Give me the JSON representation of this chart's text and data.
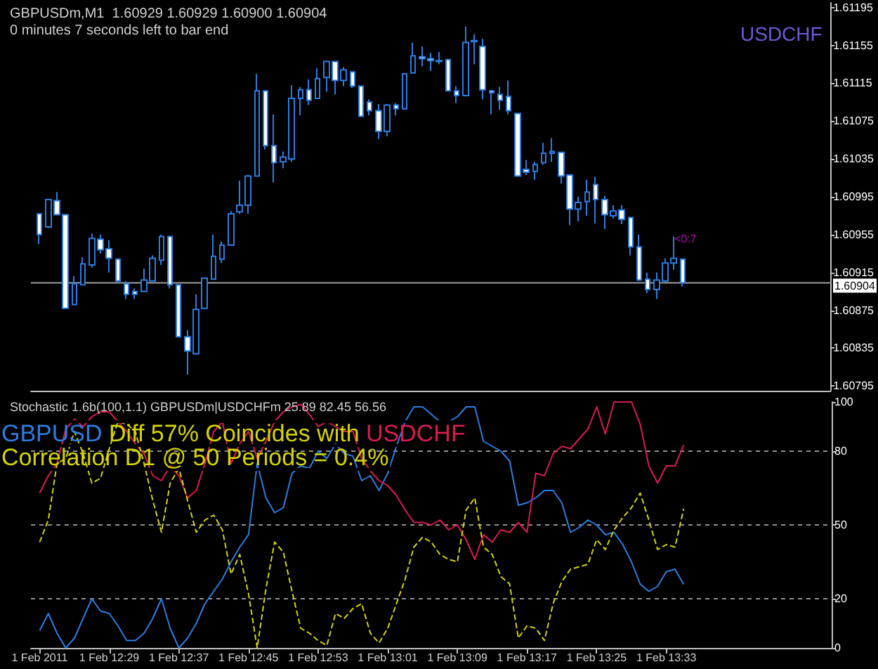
{
  "chart_data": [
    {
      "type": "candlestick",
      "title": "GBPUSDm,M1  1.60929 1.60929 1.60900 1.60904",
      "subtitle": "0 minutes 7 seconds left to bar end",
      "annotations": [
        "USDCHF",
        "<0:7"
      ],
      "x": [
        "2011-02-01T12:21",
        "2011-02-01T12:22",
        "2011-02-01T12:23",
        "2011-02-01T12:24",
        "2011-02-01T12:25",
        "2011-02-01T12:26",
        "2011-02-01T12:27",
        "2011-02-01T12:28",
        "2011-02-01T12:29",
        "2011-02-01T12:30",
        "2011-02-01T12:31",
        "2011-02-01T12:32",
        "2011-02-01T12:33",
        "2011-02-01T12:34",
        "2011-02-01T12:35",
        "2011-02-01T12:36",
        "2011-02-01T12:37",
        "2011-02-01T12:38",
        "2011-02-01T12:39",
        "2011-02-01T12:40",
        "2011-02-01T12:41",
        "2011-02-01T12:42",
        "2011-02-01T12:43",
        "2011-02-01T12:44",
        "2011-02-01T12:45",
        "2011-02-01T12:46",
        "2011-02-01T12:47",
        "2011-02-01T12:48",
        "2011-02-01T12:49",
        "2011-02-01T12:50",
        "2011-02-01T12:51",
        "2011-02-01T12:52",
        "2011-02-01T12:53",
        "2011-02-01T12:54",
        "2011-02-01T12:55",
        "2011-02-01T12:56",
        "2011-02-01T12:57",
        "2011-02-01T12:58",
        "2011-02-01T12:59",
        "2011-02-01T13:00",
        "2011-02-01T13:01",
        "2011-02-01T13:02",
        "2011-02-01T13:03",
        "2011-02-01T13:04",
        "2011-02-01T13:05",
        "2011-02-01T13:06",
        "2011-02-01T13:07",
        "2011-02-01T13:08",
        "2011-02-01T13:09",
        "2011-02-01T13:10",
        "2011-02-01T13:11",
        "2011-02-01T13:12",
        "2011-02-01T13:13",
        "2011-02-01T13:14",
        "2011-02-01T13:15",
        "2011-02-01T13:16",
        "2011-02-01T13:17",
        "2011-02-01T13:18",
        "2011-02-01T13:19",
        "2011-02-01T13:20",
        "2011-02-01T13:21",
        "2011-02-01T13:22",
        "2011-02-01T13:23",
        "2011-02-01T13:24",
        "2011-02-01T13:25",
        "2011-02-01T13:26",
        "2011-02-01T13:27",
        "2011-02-01T13:28",
        "2011-02-01T13:29",
        "2011-02-01T13:30",
        "2011-02-01T13:31",
        "2011-02-01T13:32",
        "2011-02-01T13:33",
        "2011-02-01T13:34",
        "2011-02-01T13:35"
      ],
      "xlim": [
        "2011-02-01T12:20",
        "2011-02-01T13:52"
      ],
      "series": [
        {
          "color": "#2a7de1",
          "ohlc": [
            [
              1.60977,
              1.60977,
              1.60945,
              1.60955
            ],
            [
              1.60963,
              1.60992,
              1.60962,
              1.60992
            ],
            [
              1.60991,
              1.61,
              1.60976,
              1.60976
            ],
            [
              1.60976,
              1.60976,
              1.60877,
              1.60877
            ],
            [
              1.60881,
              1.60911,
              1.60881,
              1.60903
            ],
            [
              1.60902,
              1.60931,
              1.60902,
              1.60924
            ],
            [
              1.60923,
              1.60956,
              1.6092,
              1.60951
            ],
            [
              1.6095,
              1.60955,
              1.60935,
              1.60939
            ],
            [
              1.6094,
              1.60949,
              1.60915,
              1.6093
            ],
            [
              1.60929,
              1.60929,
              1.60903,
              1.60906
            ],
            [
              1.60903,
              1.60906,
              1.60887,
              1.60892
            ],
            [
              1.60895,
              1.60898,
              1.60887,
              1.60892
            ],
            [
              1.60895,
              1.60919,
              1.60895,
              1.60907
            ],
            [
              1.60906,
              1.60933,
              1.60906,
              1.6093
            ],
            [
              1.60928,
              1.60955,
              1.60923,
              1.60953
            ],
            [
              1.60953,
              1.60953,
              1.60898,
              1.60902
            ],
            [
              1.60902,
              1.60902,
              1.60847,
              1.60847
            ],
            [
              1.60847,
              1.60854,
              1.60807,
              1.60832
            ],
            [
              1.60829,
              1.60892,
              1.60828,
              1.60876
            ],
            [
              1.60877,
              1.60909,
              1.60877,
              1.60909
            ],
            [
              1.60908,
              1.60955,
              1.60908,
              1.60932
            ],
            [
              1.60929,
              1.60948,
              1.60925,
              1.60944
            ],
            [
              1.60944,
              1.6098,
              1.60944,
              1.60977
            ],
            [
              1.60979,
              1.61012,
              1.60977,
              1.60986
            ],
            [
              1.60986,
              1.61018,
              1.60977,
              1.61017
            ],
            [
              1.61017,
              1.61125,
              1.61017,
              1.61107
            ],
            [
              1.61107,
              1.61107,
              1.61045,
              1.61049
            ],
            [
              1.61049,
              1.61082,
              1.6101,
              1.61031
            ],
            [
              1.61032,
              1.61043,
              1.61025,
              1.61037
            ],
            [
              1.61035,
              1.61113,
              1.61032,
              1.61099
            ],
            [
              1.61099,
              1.61111,
              1.61081,
              1.61108
            ],
            [
              1.61108,
              1.61119,
              1.61092,
              1.61097
            ],
            [
              1.61099,
              1.61131,
              1.61099,
              1.6112
            ],
            [
              1.61121,
              1.61139,
              1.61106,
              1.61138
            ],
            [
              1.61138,
              1.61138,
              1.61103,
              1.61118
            ],
            [
              1.61118,
              1.61132,
              1.61112,
              1.61129
            ],
            [
              1.61127,
              1.61127,
              1.6111,
              1.61112
            ],
            [
              1.61112,
              1.61112,
              1.6108,
              1.6108
            ],
            [
              1.61095,
              1.61098,
              1.61081,
              1.61086
            ],
            [
              1.61086,
              1.61093,
              1.61056,
              1.61064
            ],
            [
              1.61064,
              1.61093,
              1.61059,
              1.61092
            ],
            [
              1.61092,
              1.61094,
              1.61081,
              1.61088
            ],
            [
              1.61088,
              1.61126,
              1.61087,
              1.61125
            ],
            [
              1.61126,
              1.61158,
              1.61125,
              1.61144
            ],
            [
              1.61143,
              1.61154,
              1.61133,
              1.61141
            ],
            [
              1.61141,
              1.61147,
              1.61128,
              1.61139
            ],
            [
              1.61138,
              1.61148,
              1.61135,
              1.61139
            ],
            [
              1.6114,
              1.6114,
              1.61107,
              1.61107
            ],
            [
              1.61107,
              1.61112,
              1.61094,
              1.61102
            ],
            [
              1.61102,
              1.61175,
              1.61101,
              1.61158
            ],
            [
              1.61159,
              1.61167,
              1.61135,
              1.6116
            ],
            [
              1.61154,
              1.61162,
              1.61098,
              1.61108
            ],
            [
              1.61107,
              1.61108,
              1.61082,
              1.61105
            ],
            [
              1.61103,
              1.61111,
              1.61087,
              1.61097
            ],
            [
              1.61101,
              1.61118,
              1.61082,
              1.61086
            ],
            [
              1.61083,
              1.61083,
              1.61017,
              1.61017
            ],
            [
              1.61024,
              1.61034,
              1.61018,
              1.61021
            ],
            [
              1.61022,
              1.61032,
              1.61013,
              1.61029
            ],
            [
              1.61031,
              1.61052,
              1.61029,
              1.61041
            ],
            [
              1.61041,
              1.61057,
              1.61032,
              1.61043
            ],
            [
              1.61042,
              1.61042,
              1.61009,
              1.61017
            ],
            [
              1.61018,
              1.61018,
              1.60965,
              1.60982
            ],
            [
              1.60982,
              1.60995,
              1.60969,
              1.60989
            ],
            [
              1.6099,
              1.61013,
              1.60975,
              1.61
            ],
            [
              1.61008,
              1.61016,
              1.60967,
              1.60992
            ],
            [
              1.60992,
              1.60996,
              1.60961,
              1.60976
            ],
            [
              1.60975,
              1.60986,
              1.60972,
              1.6098
            ],
            [
              1.60981,
              1.60986,
              1.60966,
              1.60971
            ],
            [
              1.60973,
              1.60973,
              1.60933,
              1.60942
            ],
            [
              1.60942,
              1.60955,
              1.60906,
              1.60907
            ],
            [
              1.60908,
              1.60915,
              1.60893,
              1.60897
            ],
            [
              1.60897,
              1.60915,
              1.60887,
              1.60907
            ],
            [
              1.60906,
              1.6093,
              1.60905,
              1.60925
            ],
            [
              1.60925,
              1.60953,
              1.60918,
              1.6093
            ],
            [
              1.60929,
              1.60929,
              1.609,
              1.60904
            ]
          ]
        }
      ],
      "ylim": [
        1.6079,
        1.612
      ],
      "yticks": [
        1.61195,
        1.61155,
        1.61115,
        1.61075,
        1.61035,
        1.60995,
        1.60955,
        1.60915,
        1.60875,
        1.60835,
        1.60795
      ],
      "ref_lines": [
        {
          "axis": "y",
          "value": 1.60904,
          "label": "1.60904",
          "color": "#a0a0a0"
        }
      ],
      "tick_labels": "y"
    },
    {
      "type": "line",
      "title": "Stochastic 1.6b(100,1.1) GBPUSDm|USDCHFm 25.89 82.45 56.56",
      "annotations": [
        "GBPUSD",
        "Diff 57% Coincides with",
        "USDCHF",
        "Correlation D1 @ 50 Periods = 0.4%"
      ],
      "x": [
        "2011-02-01T12:21",
        "2011-02-01T12:22",
        "2011-02-01T12:23",
        "2011-02-01T12:24",
        "2011-02-01T12:25",
        "2011-02-01T12:26",
        "2011-02-01T12:27",
        "2011-02-01T12:28",
        "2011-02-01T12:29",
        "2011-02-01T12:30",
        "2011-02-01T12:31",
        "2011-02-01T12:32",
        "2011-02-01T12:33",
        "2011-02-01T12:34",
        "2011-02-01T12:35",
        "2011-02-01T12:36",
        "2011-02-01T12:37",
        "2011-02-01T12:38",
        "2011-02-01T12:39",
        "2011-02-01T12:40",
        "2011-02-01T12:41",
        "2011-02-01T12:42",
        "2011-02-01T12:43",
        "2011-02-01T12:44",
        "2011-02-01T12:45",
        "2011-02-01T12:46",
        "2011-02-01T12:47",
        "2011-02-01T12:48",
        "2011-02-01T12:49",
        "2011-02-01T12:50",
        "2011-02-01T12:51",
        "2011-02-01T12:52",
        "2011-02-01T12:53",
        "2011-02-01T12:54",
        "2011-02-01T12:55",
        "2011-02-01T12:56",
        "2011-02-01T12:57",
        "2011-02-01T12:58",
        "2011-02-01T12:59",
        "2011-02-01T13:00",
        "2011-02-01T13:01",
        "2011-02-01T13:02",
        "2011-02-01T13:03",
        "2011-02-01T13:04",
        "2011-02-01T13:05",
        "2011-02-01T13:06",
        "2011-02-01T13:07",
        "2011-02-01T13:08",
        "2011-02-01T13:09",
        "2011-02-01T13:10",
        "2011-02-01T13:11",
        "2011-02-01T13:12",
        "2011-02-01T13:13",
        "2011-02-01T13:14",
        "2011-02-01T13:15",
        "2011-02-01T13:16",
        "2011-02-01T13:17",
        "2011-02-01T13:18",
        "2011-02-01T13:19",
        "2011-02-01T13:20",
        "2011-02-01T13:21",
        "2011-02-01T13:22",
        "2011-02-01T13:23",
        "2011-02-01T13:24",
        "2011-02-01T13:25",
        "2011-02-01T13:26",
        "2011-02-01T13:27",
        "2011-02-01T13:28",
        "2011-02-01T13:29",
        "2011-02-01T13:30",
        "2011-02-01T13:31",
        "2011-02-01T13:32",
        "2011-02-01T13:33",
        "2011-02-01T13:34",
        "2011-02-01T13:35"
      ],
      "xlim": [
        "2011-02-01T12:20",
        "2011-02-01T13:52"
      ],
      "xticks": [
        {
          "value": "2011-02-01T12:21",
          "label": "1 Feb 2011"
        },
        {
          "value": "2011-02-01T12:29",
          "label": "1 Feb 12:29"
        },
        {
          "value": "2011-02-01T12:37",
          "label": "1 Feb 12:37"
        },
        {
          "value": "2011-02-01T12:45",
          "label": "1 Feb 12:45"
        },
        {
          "value": "2011-02-01T12:53",
          "label": "1 Feb 12:53"
        },
        {
          "value": "2011-02-01T13:01",
          "label": "1 Feb 13:01"
        },
        {
          "value": "2011-02-01T13:09",
          "label": "1 Feb 13:09"
        },
        {
          "value": "2011-02-01T13:17",
          "label": "1 Feb 13:17"
        },
        {
          "value": "2011-02-01T13:25",
          "label": "1 Feb 13:25"
        },
        {
          "value": "2011-02-01T13:33",
          "label": "1 Feb 13:33"
        }
      ],
      "series": [
        {
          "color": "#2a7de1",
          "values": [
            7,
            14,
            6,
            0,
            4,
            12,
            20,
            15,
            14,
            9,
            3,
            3,
            6,
            12,
            20,
            8,
            0,
            4,
            10,
            18,
            23,
            28,
            35,
            41,
            46,
            75,
            61,
            55,
            57,
            71,
            74,
            73,
            80,
            77,
            83,
            79,
            78,
            68,
            70,
            64,
            71,
            82,
            92,
            98,
            98,
            95,
            92,
            92,
            94,
            98,
            98,
            84,
            82,
            80,
            76,
            58,
            59,
            61,
            64,
            64,
            59,
            47,
            49,
            52,
            50,
            46,
            47,
            42,
            35,
            26,
            23,
            25,
            31,
            32,
            25.89
          ]
        },
        {
          "color": "#d81b50",
          "values": [
            63,
            70,
            75,
            89,
            93,
            90,
            94,
            96,
            96,
            92,
            88,
            83,
            79,
            70,
            68,
            74,
            70,
            61,
            64,
            75,
            88,
            92,
            75,
            83,
            88,
            77,
            84,
            92,
            96,
            98,
            99,
            95,
            90,
            92,
            90,
            88,
            88,
            77,
            72,
            68,
            66,
            62,
            56,
            51,
            51,
            50,
            52,
            48,
            50,
            44,
            36,
            46,
            43,
            48,
            47,
            51,
            47,
            71,
            70,
            79,
            82,
            81,
            85,
            89,
            98,
            87,
            100,
            100,
            100,
            91,
            74,
            67,
            74,
            74,
            82.45
          ]
        },
        {
          "color": "#d4d400",
          "line_style": "dashed",
          "values": [
            43,
            52,
            75,
            77,
            88,
            79,
            67,
            69,
            81,
            92,
            91,
            88,
            75,
            60,
            47,
            67,
            73,
            60,
            47,
            52,
            54,
            48,
            30,
            38,
            22,
            0,
            24,
            43,
            39,
            23,
            8,
            6,
            3,
            1,
            14,
            12,
            16,
            18,
            6,
            2,
            8,
            18,
            28,
            41,
            45,
            43,
            38,
            36,
            35,
            56,
            61,
            41,
            38,
            29,
            26,
            4,
            9,
            8,
            3,
            18,
            27,
            32,
            33,
            34,
            44,
            40,
            48,
            53,
            57,
            63,
            52,
            40,
            42,
            41,
            56.56
          ]
        }
      ],
      "marker": "none",
      "ylim": [
        0,
        100
      ],
      "yticks": [
        100,
        80,
        50,
        20,
        0
      ],
      "ref_lines": [
        {
          "axis": "y",
          "value": 80,
          "color": "#909090",
          "line_style": "dashed"
        },
        {
          "axis": "y",
          "value": 50,
          "color": "#909090",
          "line_style": "dashed"
        },
        {
          "axis": "y",
          "value": 20,
          "color": "#909090",
          "line_style": "dashed"
        }
      ]
    }
  ]
}
